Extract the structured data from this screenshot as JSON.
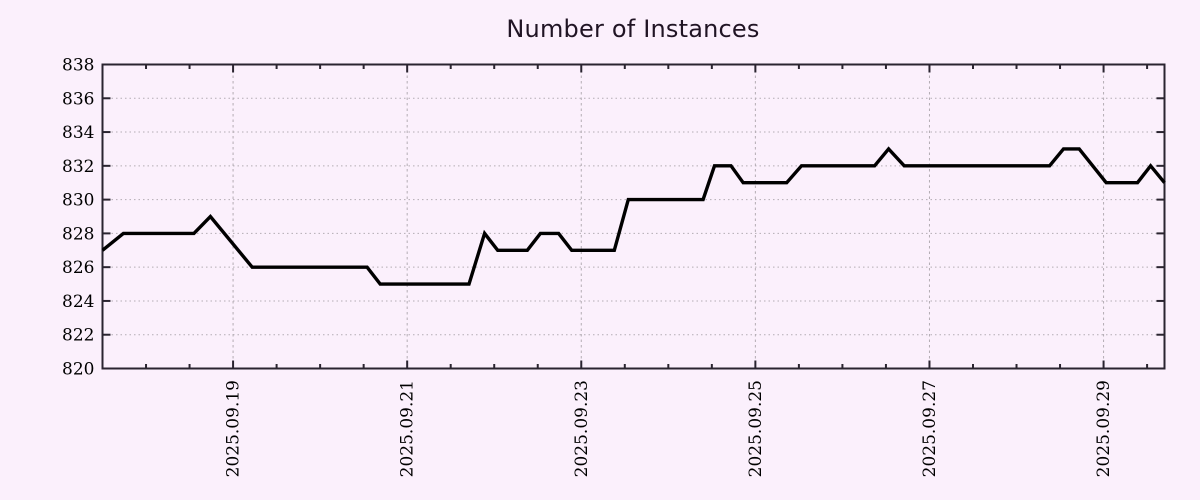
{
  "window": {
    "background_color": "#fbf0fc"
  },
  "chart_data": {
    "type": "line",
    "title": "Number of Instances",
    "legend": "none",
    "x_axis": {
      "kind": "date",
      "range_days": [
        17.5,
        29.7
      ],
      "minor_tick_step_days": 0.5,
      "grid": "dashed",
      "major_ticks": [
        {
          "day": 19,
          "label": "2025.09.19"
        },
        {
          "day": 21,
          "label": "2025.09.21"
        },
        {
          "day": 23,
          "label": "2025.09.23"
        },
        {
          "day": 25,
          "label": "2025.09.25"
        },
        {
          "day": 27,
          "label": "2025.09.27"
        },
        {
          "day": 29,
          "label": "2025.09.29"
        }
      ]
    },
    "y_axis": {
      "range": [
        820,
        838
      ],
      "tick_step": 2,
      "ticks": [
        820,
        822,
        824,
        826,
        828,
        830,
        832,
        834,
        836,
        838
      ],
      "grid": "dotted"
    },
    "series": [
      {
        "name": "instances",
        "color": "#000000",
        "points": [
          [
            17.5,
            827
          ],
          [
            17.74,
            828
          ],
          [
            18.55,
            828
          ],
          [
            18.74,
            829
          ],
          [
            19.22,
            826
          ],
          [
            20.54,
            826
          ],
          [
            20.69,
            825
          ],
          [
            21.71,
            825
          ],
          [
            21.89,
            828
          ],
          [
            22.04,
            827
          ],
          [
            22.38,
            827
          ],
          [
            22.53,
            828
          ],
          [
            22.74,
            828
          ],
          [
            22.89,
            827
          ],
          [
            23.38,
            827
          ],
          [
            23.54,
            830
          ],
          [
            24.4,
            830
          ],
          [
            24.53,
            832
          ],
          [
            24.72,
            832
          ],
          [
            24.86,
            831
          ],
          [
            25.36,
            831
          ],
          [
            25.53,
            832
          ],
          [
            26.37,
            832
          ],
          [
            26.53,
            833
          ],
          [
            26.71,
            832
          ],
          [
            28.38,
            832
          ],
          [
            28.54,
            833
          ],
          [
            28.72,
            833
          ],
          [
            29.03,
            831
          ],
          [
            29.39,
            831
          ],
          [
            29.54,
            832
          ],
          [
            29.7,
            831
          ]
        ]
      }
    ],
    "colors": {
      "background": "#fbf0fc",
      "line": "#000000",
      "grid": "#b3acb3",
      "border": "#2a2430",
      "tick_text": "#000000",
      "title_text": "#201424"
    }
  }
}
